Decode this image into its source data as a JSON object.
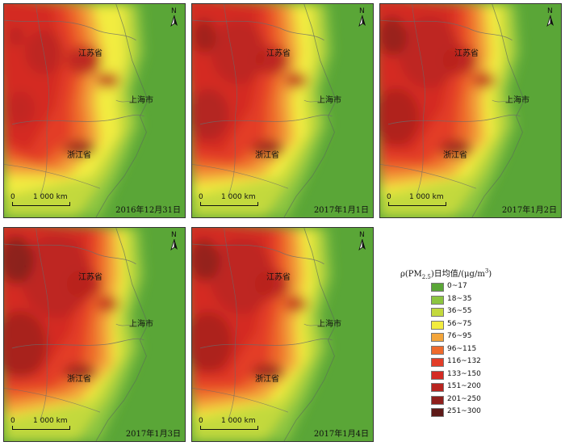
{
  "panels": [
    {
      "date": "2016年12月31日",
      "jiangsu": "江苏省",
      "shanghai": "上海市",
      "zhejiang": "浙江省",
      "scale_zero": "0",
      "scale_dist": "1 000 km",
      "north": "N",
      "intensity": 0.35
    },
    {
      "date": "2017年1月1日",
      "jiangsu": "江苏省",
      "shanghai": "上海市",
      "zhejiang": "浙江省",
      "scale_zero": "0",
      "scale_dist": "1 000 km",
      "north": "N",
      "intensity": 0.6
    },
    {
      "date": "2017年1月2日",
      "jiangsu": "江苏省",
      "shanghai": "上海市",
      "zhejiang": "浙江省",
      "scale_zero": "0",
      "scale_dist": "1 000 km",
      "north": "N",
      "intensity": 0.7
    },
    {
      "date": "2017年1月3日",
      "jiangsu": "江苏省",
      "shanghai": "上海市",
      "zhejiang": "浙江省",
      "scale_zero": "0",
      "scale_dist": "1 000 km",
      "north": "N",
      "intensity": 0.85
    },
    {
      "date": "2017年1月4日",
      "jiangsu": "江苏省",
      "shanghai": "上海市",
      "zhejiang": "浙江省",
      "scale_zero": "0",
      "scale_dist": "1 000 km",
      "north": "N",
      "intensity": 0.75
    }
  ],
  "legend": {
    "title_prefix": "ρ(PM",
    "title_sub": "2.5",
    "title_mid": ")日均值/(μg/m",
    "title_sup": "3",
    "title_suffix": ")",
    "items": [
      {
        "label": "0~17",
        "color": "#5aa637"
      },
      {
        "label": "18~35",
        "color": "#8cc540"
      },
      {
        "label": "36~55",
        "color": "#c3d93c"
      },
      {
        "label": "56~75",
        "color": "#f2ec3f"
      },
      {
        "label": "76~95",
        "color": "#f3a53a"
      },
      {
        "label": "96~115",
        "color": "#ee6a2c"
      },
      {
        "label": "116~132",
        "color": "#e33d28"
      },
      {
        "label": "133~150",
        "color": "#d42a23"
      },
      {
        "label": "151~200",
        "color": "#b8241f"
      },
      {
        "label": "201~250",
        "color": "#8f1f1c"
      },
      {
        "label": "251~300",
        "color": "#5e1a18"
      }
    ]
  }
}
